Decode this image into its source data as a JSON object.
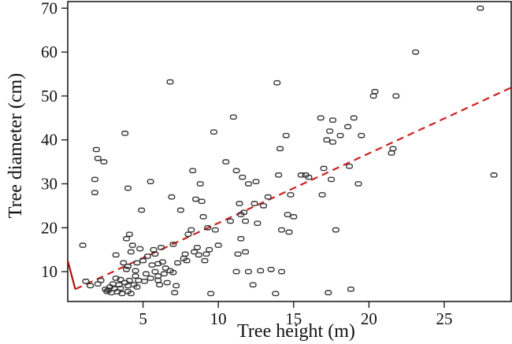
{
  "chart_data": {
    "type": "scatter",
    "title": "",
    "xlabel": "Tree height (m)",
    "ylabel": "Tree diameter (cm)",
    "xlim": [
      0,
      29.5
    ],
    "ylim": [
      3.2,
      71.5
    ],
    "x_ticks": [
      5,
      10,
      15,
      20,
      25
    ],
    "x_tick_labels": [
      "5",
      "10",
      "15",
      "20",
      "25"
    ],
    "y_ticks": [
      10,
      20,
      30,
      40,
      50,
      60,
      70
    ],
    "y_tick_labels": [
      "10",
      "20",
      "30",
      "40",
      "50",
      "60",
      "70"
    ],
    "grid": false,
    "colors": {
      "points": "#333333",
      "trend": "#cc2222",
      "trend_end": "#aa1111",
      "axis": "#111111"
    },
    "trend_line": {
      "style": "dashed",
      "points": [
        [
          0.5,
          6.0
        ],
        [
          29.5,
          52.0
        ]
      ],
      "solid_end": [
        [
          0.0,
          12.5
        ],
        [
          0.5,
          6.0
        ]
      ]
    },
    "points": [
      [
        1.0,
        16.0
      ],
      [
        1.2,
        7.8
      ],
      [
        1.5,
        6.8
      ],
      [
        1.8,
        31.0
      ],
      [
        1.8,
        28.0
      ],
      [
        1.9,
        37.8
      ],
      [
        2.0,
        35.8
      ],
      [
        2.0,
        7.2
      ],
      [
        2.2,
        8.0
      ],
      [
        2.4,
        35.0
      ],
      [
        2.5,
        6.0
      ],
      [
        2.6,
        5.5
      ],
      [
        2.7,
        5.8
      ],
      [
        2.8,
        6.5
      ],
      [
        2.9,
        5.2
      ],
      [
        3.0,
        7.2
      ],
      [
        3.1,
        6.1
      ],
      [
        3.2,
        8.5
      ],
      [
        3.2,
        13.8
      ],
      [
        3.3,
        5.4
      ],
      [
        3.4,
        7.0
      ],
      [
        3.5,
        6.2
      ],
      [
        3.5,
        8.2
      ],
      [
        3.6,
        5.0
      ],
      [
        3.7,
        12.0
      ],
      [
        3.8,
        7.5
      ],
      [
        3.8,
        41.5
      ],
      [
        3.9,
        17.5
      ],
      [
        3.9,
        10.5
      ],
      [
        4.0,
        11.2
      ],
      [
        4.0,
        6.8
      ],
      [
        4.0,
        5.5
      ],
      [
        4.0,
        29.0
      ],
      [
        4.1,
        8.0
      ],
      [
        4.1,
        18.5
      ],
      [
        4.2,
        14.5
      ],
      [
        4.2,
        5.0
      ],
      [
        4.3,
        16.0
      ],
      [
        4.4,
        7.0
      ],
      [
        4.5,
        9.0
      ],
      [
        4.5,
        10.2
      ],
      [
        4.6,
        12.0
      ],
      [
        4.6,
        6.5
      ],
      [
        4.7,
        8.0
      ],
      [
        4.8,
        15.2
      ],
      [
        4.9,
        24.0
      ],
      [
        5.0,
        12.5
      ],
      [
        5.1,
        7.8
      ],
      [
        5.2,
        9.5
      ],
      [
        5.3,
        13.5
      ],
      [
        5.5,
        30.5
      ],
      [
        5.5,
        8.5
      ],
      [
        5.6,
        11.5
      ],
      [
        5.7,
        15.0
      ],
      [
        5.8,
        10.0
      ],
      [
        5.8,
        14.0
      ],
      [
        6.0,
        9.0
      ],
      [
        6.0,
        11.8
      ],
      [
        6.0,
        8.0
      ],
      [
        6.1,
        7.0
      ],
      [
        6.2,
        15.5
      ],
      [
        6.3,
        12.2
      ],
      [
        6.4,
        9.5
      ],
      [
        6.5,
        10.8
      ],
      [
        6.6,
        7.5
      ],
      [
        6.8,
        10.2
      ],
      [
        6.8,
        53.2
      ],
      [
        6.9,
        27.0
      ],
      [
        7.0,
        16.2
      ],
      [
        7.0,
        9.8
      ],
      [
        7.1,
        5.2
      ],
      [
        7.2,
        6.8
      ],
      [
        7.3,
        12.0
      ],
      [
        7.5,
        24.0
      ],
      [
        7.7,
        13.0
      ],
      [
        7.8,
        14.0
      ],
      [
        7.9,
        12.5
      ],
      [
        8.0,
        18.5
      ],
      [
        8.2,
        19.5
      ],
      [
        8.3,
        33.0
      ],
      [
        8.4,
        14.5
      ],
      [
        8.5,
        26.5
      ],
      [
        8.6,
        15.5
      ],
      [
        8.7,
        13.8
      ],
      [
        8.8,
        30.0
      ],
      [
        8.9,
        26.0
      ],
      [
        9.0,
        22.5
      ],
      [
        9.1,
        12.5
      ],
      [
        9.2,
        14.0
      ],
      [
        9.3,
        20.0
      ],
      [
        9.4,
        15.0
      ],
      [
        9.5,
        5.0
      ],
      [
        9.7,
        41.8
      ],
      [
        9.8,
        19.5
      ],
      [
        10.0,
        16.0
      ],
      [
        10.5,
        35.0
      ],
      [
        10.8,
        21.5
      ],
      [
        11.0,
        45.2
      ],
      [
        11.2,
        10.0
      ],
      [
        11.2,
        33.0
      ],
      [
        11.3,
        14.0
      ],
      [
        11.4,
        25.5
      ],
      [
        11.5,
        17.5
      ],
      [
        11.5,
        23.0
      ],
      [
        11.6,
        31.5
      ],
      [
        11.7,
        23.5
      ],
      [
        11.8,
        21.5
      ],
      [
        11.8,
        14.5
      ],
      [
        12.0,
        30.0
      ],
      [
        12.0,
        10.0
      ],
      [
        12.3,
        7.0
      ],
      [
        12.4,
        25.5
      ],
      [
        12.5,
        30.5
      ],
      [
        12.6,
        21.0
      ],
      [
        12.8,
        10.2
      ],
      [
        13.0,
        25.0
      ],
      [
        13.3,
        27.0
      ],
      [
        13.8,
        5.0
      ],
      [
        13.9,
        53.0
      ],
      [
        14.0,
        32.0
      ],
      [
        14.1,
        38.0
      ],
      [
        14.2,
        19.5
      ],
      [
        14.5,
        41.0
      ],
      [
        14.6,
        23.0
      ],
      [
        14.7,
        19.0
      ],
      [
        14.8,
        27.5
      ],
      [
        15.0,
        22.5
      ],
      [
        15.5,
        32.0
      ],
      [
        15.8,
        32.0
      ],
      [
        16.0,
        31.5
      ],
      [
        16.8,
        45.0
      ],
      [
        16.9,
        27.5
      ],
      [
        17.0,
        33.5
      ],
      [
        17.2,
        40.0
      ],
      [
        17.4,
        42.0
      ],
      [
        17.5,
        31.0
      ],
      [
        17.6,
        39.5
      ],
      [
        17.6,
        44.5
      ],
      [
        17.8,
        19.5
      ],
      [
        18.1,
        41.0
      ],
      [
        18.6,
        43.0
      ],
      [
        18.7,
        34.0
      ],
      [
        19.0,
        45.0
      ],
      [
        19.3,
        30.0
      ],
      [
        19.5,
        41.0
      ],
      [
        20.3,
        50.0
      ],
      [
        20.4,
        51.0
      ],
      [
        21.5,
        37.0
      ],
      [
        21.6,
        38.0
      ],
      [
        21.8,
        50.0
      ],
      [
        23.1,
        60.0
      ],
      [
        27.4,
        70.0
      ],
      [
        28.3,
        32.0
      ],
      [
        17.3,
        5.2
      ],
      [
        18.8,
        6.0
      ],
      [
        13.5,
        10.5
      ],
      [
        14.2,
        10.0
      ]
    ]
  }
}
